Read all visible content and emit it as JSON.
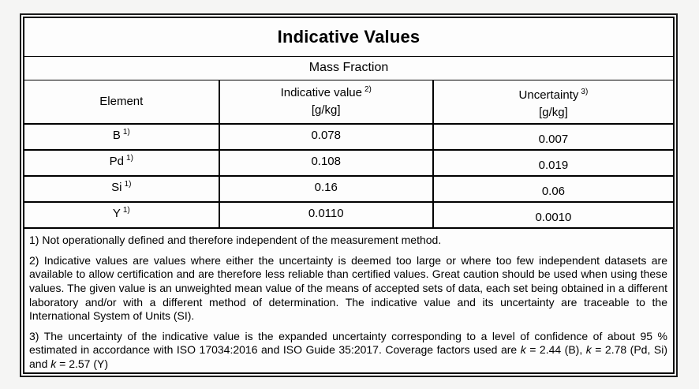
{
  "table": {
    "title": "Indicative Values",
    "subtitle": "Mass Fraction",
    "columns": {
      "element_label": "Element",
      "indicative": {
        "label": "Indicative value",
        "ref": "2)",
        "unit": "[g/kg]"
      },
      "uncertainty": {
        "label": "Uncertainty",
        "ref": "3)",
        "unit": "[g/kg]"
      }
    },
    "rows": [
      {
        "element": "B",
        "ref": "1)",
        "value": "0.078",
        "uncertainty": "0.007"
      },
      {
        "element": "Pd",
        "ref": "1)",
        "value": "0.108",
        "uncertainty": "0.019"
      },
      {
        "element": "Si",
        "ref": "1)",
        "value": "0.16",
        "uncertainty": "0.06"
      },
      {
        "element": "Y",
        "ref": "1)",
        "value": "0.0110",
        "uncertainty": "0.0010"
      }
    ]
  },
  "footnotes": {
    "note1": "1) Not operationally defined and therefore independent of the measurement method.",
    "note2": "2) Indicative values are values where either the uncertainty is deemed too large or where too few independent datasets are available to allow certification and are therefore less reliable than certified values. Great caution should be used when using these values. The given value is an unweighted mean value of the means of accepted sets of data, each set being obtained in a different laboratory and/or with a different method of determination. The indicative value and its uncertainty are traceable to the International System of Units (SI).",
    "note3_segments": [
      {
        "t": "3) The uncertainty of the indicative value is the expanded uncertainty corresponding to a level of confidence of about 95 % estimated in accordance with ISO 17034:2016 and ISO Guide 35:2017. Coverage factors used are "
      },
      {
        "t": "k",
        "i": true
      },
      {
        "t": " = 2.44 (B), "
      },
      {
        "t": "k",
        "i": true
      },
      {
        "t": " = 2.78 (Pd, Si) and "
      },
      {
        "t": "k",
        "i": true
      },
      {
        "t": " = 2.57 (Y)"
      }
    ]
  },
  "colors": {
    "border": "#000000",
    "page_background": "#f5f5f4",
    "cell_background": "#fdfdfd"
  }
}
